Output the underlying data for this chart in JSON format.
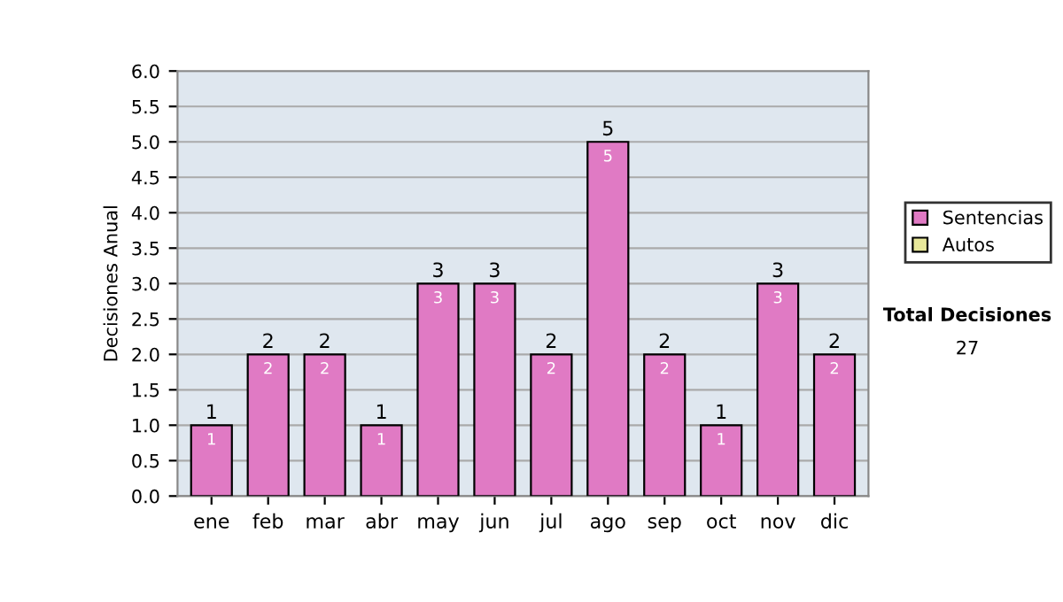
{
  "chart_data": {
    "type": "bar",
    "ylabel": "Decisiones Anual",
    "stacked": true,
    "categories": [
      "ene",
      "feb",
      "mar",
      "abr",
      "may",
      "jun",
      "jul",
      "ago",
      "sep",
      "oct",
      "nov",
      "dic"
    ],
    "series": [
      {
        "name": "Sentencias",
        "color": "#e07ac4",
        "values": [
          1,
          2,
          2,
          1,
          3,
          3,
          2,
          5,
          2,
          1,
          3,
          2
        ],
        "value_labels": [
          "1",
          "2",
          "2",
          "1",
          "3",
          "3",
          "2",
          "5",
          "2",
          "1",
          "3",
          "2"
        ]
      },
      {
        "name": "Autos",
        "color": "#e8e89a",
        "values": [
          0,
          0,
          0,
          0,
          0,
          0,
          0,
          0,
          0,
          0,
          0,
          0
        ]
      }
    ],
    "totals": [
      "1",
      "2",
      "2",
      "1",
      "3",
      "3",
      "2",
      "5",
      "2",
      "1",
      "3",
      "2"
    ],
    "ylim": [
      0,
      6
    ],
    "yticks": [
      {
        "value": 0,
        "label": "0.0"
      },
      {
        "value": 0.5,
        "label": "0.5"
      },
      {
        "value": 1,
        "label": "1.0"
      },
      {
        "value": 1.5,
        "label": "1.5"
      },
      {
        "value": 2,
        "label": "2.0"
      },
      {
        "value": 2.5,
        "label": "2.5"
      },
      {
        "value": 3,
        "label": "3.0"
      },
      {
        "value": 3.5,
        "label": "3.5"
      },
      {
        "value": 4,
        "label": "4.0"
      },
      {
        "value": 4.5,
        "label": "4.5"
      },
      {
        "value": 5,
        "label": "5.0"
      },
      {
        "value": 5.5,
        "label": "5.5"
      },
      {
        "value": 6,
        "label": "6.0"
      }
    ],
    "grid": "y",
    "legend": "right",
    "annotations": [
      "Total Decisiones",
      "27"
    ]
  }
}
